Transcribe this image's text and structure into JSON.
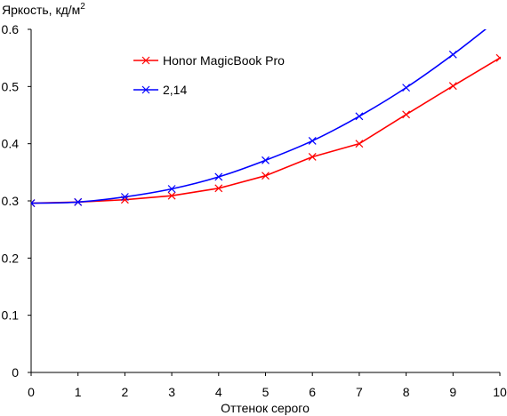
{
  "chart_data": {
    "type": "line",
    "title": "",
    "ylabel": "Яркость, кд/м",
    "ylabel_sup": "2",
    "xlabel": "Оттенок серого",
    "xlim": [
      0,
      10
    ],
    "ylim": [
      0,
      0.6
    ],
    "x_ticks": [
      0,
      1,
      2,
      3,
      4,
      5,
      6,
      7,
      8,
      9,
      10
    ],
    "y_ticks": [
      0,
      0.1,
      0.2,
      0.3,
      0.4,
      0.5,
      0.6
    ],
    "y_tick_labels": [
      "0",
      "0.1",
      "0.2",
      "0.3",
      "0.4",
      "0.5",
      "0.6"
    ],
    "grid": false,
    "legend_position": "top-left",
    "x": [
      0,
      1,
      2,
      3,
      4,
      5,
      6,
      7,
      8,
      9,
      10
    ],
    "series": [
      {
        "name": "Honor MagicBook Pro",
        "color": "#ff0000",
        "smooth": false,
        "values": [
          0.296,
          0.298,
          0.302,
          0.309,
          0.322,
          0.344,
          0.377,
          0.4,
          0.451,
          0.501,
          0.55
        ]
      },
      {
        "name": "2,14",
        "color": "#0000ff",
        "smooth": true,
        "values": [
          0.296,
          0.298,
          0.307,
          0.321,
          0.342,
          0.371,
          0.405,
          0.448,
          0.498,
          0.556,
          0.62
        ]
      }
    ]
  }
}
